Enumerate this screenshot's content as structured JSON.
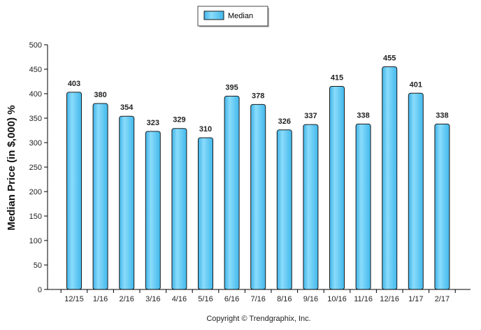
{
  "chart_data": {
    "type": "bar",
    "title": "",
    "xlabel": "",
    "ylabel": "Median Price (in $,000) %",
    "categories": [
      "12/15",
      "1/16",
      "2/16",
      "3/16",
      "4/16",
      "5/16",
      "6/16",
      "7/16",
      "8/16",
      "9/16",
      "10/16",
      "11/16",
      "12/16",
      "1/17",
      "2/17"
    ],
    "series": [
      {
        "name": "Median",
        "values": [
          403,
          380,
          354,
          323,
          329,
          310,
          395,
          378,
          326,
          337,
          415,
          338,
          455,
          401,
          338
        ]
      }
    ],
    "ylim": [
      0,
      500
    ],
    "yticks": [
      0,
      50,
      100,
      150,
      200,
      250,
      300,
      350,
      400,
      450,
      500
    ],
    "data_labels": true,
    "legend": "top-center",
    "grid": false,
    "colors": {
      "bar_fill": "#5CC8F5",
      "bar_stroke": "#1a1a1a"
    }
  },
  "footer": {
    "copyright": "Copyright © Trendgraphix, Inc."
  }
}
